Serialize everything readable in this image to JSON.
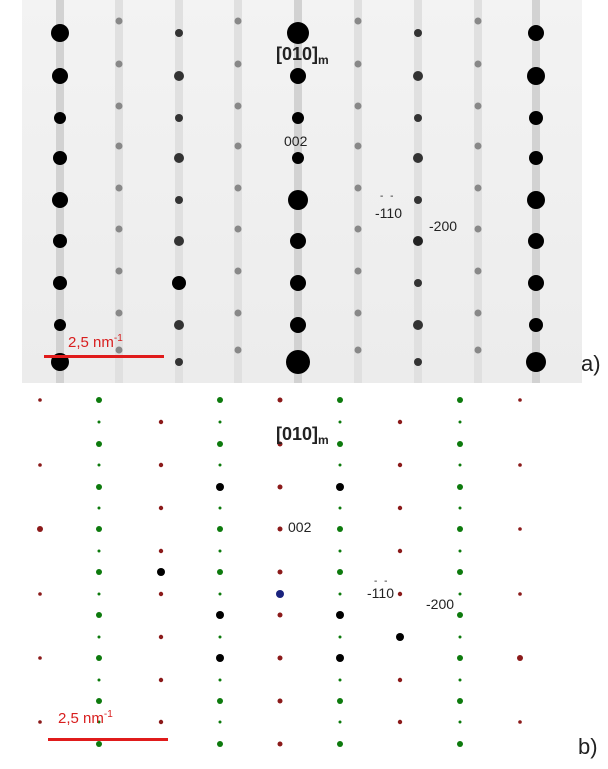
{
  "panel_a": {
    "zone_axis": {
      "text": "[010]",
      "sub": "m"
    },
    "spot_labels": {
      "p002": "002",
      "m110": "-110",
      "m200": "-200",
      "bar_overline": "- -"
    },
    "scale": "2,5 nm",
    "scale_sup": "-1",
    "tag": "a)"
  },
  "panel_b": {
    "zone_axis": {
      "text": "[010]",
      "sub": "m"
    },
    "spot_labels": {
      "p002": "002",
      "m110": "-110",
      "m200": "-200",
      "bar_overline": "- -"
    },
    "scale": "2,5 nm",
    "scale_sup": "-1",
    "tag": "b)"
  },
  "colors": {
    "spot_dark": "#000000",
    "spot_green": "#0d7a0d",
    "spot_red": "#8b1a1a",
    "spot_blue": "#1a237e",
    "scale_red": "#e01b1b"
  }
}
